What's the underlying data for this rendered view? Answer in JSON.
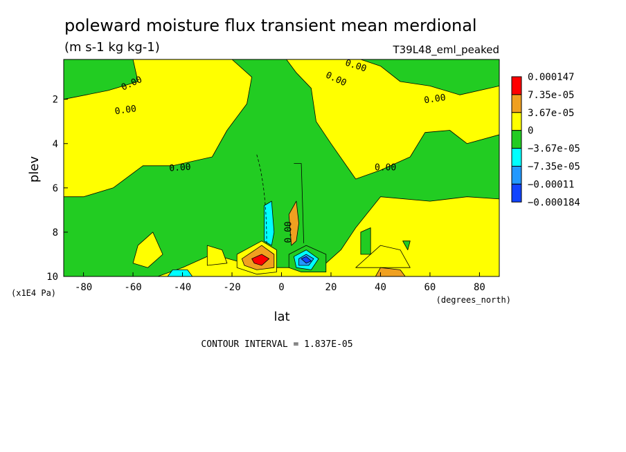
{
  "chart_data": {
    "type": "heatmap",
    "title": "poleward moisture flux transient mean merdional",
    "units": "(m s-1 kg kg-1)",
    "run_label": "T39L48_eml_peaked",
    "xlabel": "lat",
    "xunits": "(degrees_north)",
    "ylabel": "plev",
    "yunits": "(x1E4 Pa)",
    "xlim": [
      -88,
      88
    ],
    "ylim": [
      10,
      0.2
    ],
    "xticks": [
      -80,
      -60,
      -40,
      -20,
      0,
      20,
      40,
      60,
      80
    ],
    "yticks": [
      2,
      4,
      6,
      8,
      10
    ],
    "contour_interval_text": "CONTOUR INTERVAL = 1.837E-05",
    "contour_labels": [
      "0.00",
      "0.00",
      "0.00",
      "0.00",
      "0.00",
      "0.00",
      "0.00",
      "0.00"
    ],
    "colorbar": {
      "labels": [
        "0.000147",
        "7.35e-05",
        "3.67e-05",
        "0",
        "−3.67e-05",
        "−7.35e-05",
        "−0.00011",
        "−0.000184"
      ],
      "colors": [
        "#ff0000",
        "#f0a020",
        "#ffff00",
        "#22cc22",
        "#00ffff",
        "#2299ff",
        "#1144ff"
      ]
    },
    "background_color": "#ffff00",
    "regions": [
      {
        "level": "-3.67e-05 to 0",
        "color": "#22cc22",
        "points": [
          [
            -88,
            0.2
          ],
          [
            -60,
            0.2
          ],
          [
            -58,
            1.2
          ],
          [
            -70,
            1.6
          ],
          [
            -88,
            2.0
          ]
        ]
      },
      {
        "level": "-3.67e-05 to 0",
        "color": "#22cc22",
        "points": [
          [
            -42,
            0.2
          ],
          [
            -20,
            0.2
          ],
          [
            -12,
            1.0
          ],
          [
            -14,
            2.2
          ],
          [
            -22,
            3.4
          ],
          [
            -28,
            4.6
          ],
          [
            -44,
            5.0
          ],
          [
            -56,
            5.0
          ],
          [
            -68,
            6.0
          ],
          [
            -80,
            6.4
          ],
          [
            -88,
            6.4
          ],
          [
            -88,
            10
          ],
          [
            -50,
            10
          ],
          [
            -40,
            9.6
          ],
          [
            -28,
            9.0
          ],
          [
            -15,
            9.4
          ],
          [
            -5,
            9.6
          ],
          [
            5,
            9.6
          ],
          [
            18,
            9.4
          ],
          [
            24,
            8.8
          ],
          [
            30,
            7.8
          ],
          [
            40,
            6.4
          ],
          [
            60,
            6.6
          ],
          [
            75,
            6.4
          ],
          [
            88,
            6.5
          ],
          [
            88,
            3.6
          ],
          [
            75,
            4.0
          ],
          [
            68,
            3.4
          ],
          [
            58,
            3.5
          ],
          [
            52,
            4.6
          ],
          [
            40,
            5.2
          ],
          [
            30,
            5.6
          ],
          [
            20,
            4.0
          ],
          [
            14,
            3.0
          ],
          [
            12,
            1.5
          ],
          [
            6,
            0.8
          ],
          [
            2,
            0.2
          ]
        ]
      },
      {
        "level": "-3.67e-05 to 0",
        "color": "#22cc22",
        "points": [
          [
            10,
            0.2
          ],
          [
            32,
            0.2
          ],
          [
            40,
            0.5
          ],
          [
            48,
            1.2
          ],
          [
            60,
            1.4
          ],
          [
            72,
            1.8
          ],
          [
            88,
            1.4
          ],
          [
            88,
            0.2
          ]
        ]
      },
      {
        "level": "0 to 3.67e-05",
        "color": "#ffff00",
        "points": [
          [
            -58,
            8.6
          ],
          [
            -52,
            8.0
          ],
          [
            -48,
            9.0
          ],
          [
            -54,
            9.6
          ],
          [
            -60,
            9.4
          ]
        ]
      },
      {
        "level": "0 to 3.67e-05",
        "color": "#ffff00",
        "points": [
          [
            -30,
            8.6
          ],
          [
            -24,
            8.8
          ],
          [
            -22,
            9.4
          ],
          [
            -30,
            9.5
          ]
        ]
      },
      {
        "level": "0 to 3.67e-05",
        "color": "#ffff00",
        "points": [
          [
            30,
            9.6
          ],
          [
            40,
            8.6
          ],
          [
            48,
            8.8
          ],
          [
            52,
            9.6
          ]
        ]
      },
      {
        "level": "-3.67e-05 to 0",
        "color": "#22cc22",
        "points": [
          [
            32,
            8.0
          ],
          [
            36,
            7.8
          ],
          [
            36,
            9.0
          ],
          [
            32,
            9.0
          ]
        ]
      },
      {
        "level": "-3.67e-05 to 0",
        "color": "#22cc22",
        "points": [
          [
            49,
            8.4
          ],
          [
            52,
            8.4
          ],
          [
            51,
            8.8
          ]
        ]
      },
      {
        "level": "0 to 3.67e-05",
        "color": "#ffff00",
        "points": [
          [
            -18,
            9.0
          ],
          [
            -8,
            8.4
          ],
          [
            -2,
            8.8
          ],
          [
            -2,
            9.8
          ],
          [
            -10,
            9.9
          ],
          [
            -18,
            9.6
          ]
        ]
      },
      {
        "level": "3.67e-05 to 7.35e-05",
        "color": "#f0a020",
        "points": [
          [
            -16,
            9.2
          ],
          [
            -8,
            8.6
          ],
          [
            -3,
            9.0
          ],
          [
            -3,
            9.6
          ],
          [
            -10,
            9.7
          ],
          [
            -15,
            9.5
          ]
        ]
      },
      {
        "level": "7.35e-05 to 0.000147",
        "color": "#ff0000",
        "points": [
          [
            -12,
            9.2
          ],
          [
            -8,
            9.0
          ],
          [
            -5,
            9.2
          ],
          [
            -8,
            9.5
          ],
          [
            -11,
            9.4
          ]
        ]
      },
      {
        "level": "3.67e-05 to 7.35e-05",
        "color": "#f0a020",
        "points": [
          [
            3,
            7.2
          ],
          [
            6,
            6.6
          ],
          [
            7,
            7.6
          ],
          [
            6,
            8.4
          ],
          [
            4,
            8.6
          ]
        ]
      },
      {
        "level": "3.67e-05 to 7.35e-05",
        "color": "#f0a020",
        "points": [
          [
            38,
            10
          ],
          [
            40,
            9.6
          ],
          [
            48,
            9.7
          ],
          [
            50,
            10
          ]
        ]
      },
      {
        "level": "-3.67e-05 to 0",
        "color": "#22cc22",
        "points": [
          [
            3,
            9.0
          ],
          [
            10,
            8.6
          ],
          [
            18,
            9.0
          ],
          [
            18,
            9.8
          ],
          [
            8,
            9.8
          ],
          [
            3,
            9.6
          ]
        ]
      },
      {
        "level": "-7.35e-05 to -3.67e-05",
        "color": "#00ffff",
        "points": [
          [
            5,
            9.1
          ],
          [
            10,
            8.8
          ],
          [
            15,
            9.2
          ],
          [
            12,
            9.7
          ],
          [
            6,
            9.6
          ]
        ]
      },
      {
        "level": "-0.00011 to -7.35e-05",
        "color": "#2299ff",
        "points": [
          [
            7,
            9.2
          ],
          [
            10,
            9.0
          ],
          [
            13,
            9.2
          ],
          [
            11,
            9.5
          ],
          [
            7,
            9.5
          ]
        ]
      },
      {
        "level": "-0.000184 to -0.00011",
        "color": "#1144ff",
        "points": [
          [
            8,
            9.2
          ],
          [
            10,
            9.1
          ],
          [
            12,
            9.3
          ],
          [
            10,
            9.4
          ]
        ]
      },
      {
        "level": "-7.35e-05 to -3.67e-05",
        "color": "#00ffff",
        "points": [
          [
            -7,
            6.8
          ],
          [
            -4,
            6.6
          ],
          [
            -3,
            8.0
          ],
          [
            -4,
            8.6
          ],
          [
            -7,
            8.4
          ]
        ]
      },
      {
        "level": "-7.35e-05 to -3.67e-05",
        "color": "#00ffff",
        "points": [
          [
            -46,
            10
          ],
          [
            -44,
            9.7
          ],
          [
            -38,
            9.7
          ],
          [
            -36,
            10
          ]
        ]
      }
    ]
  }
}
